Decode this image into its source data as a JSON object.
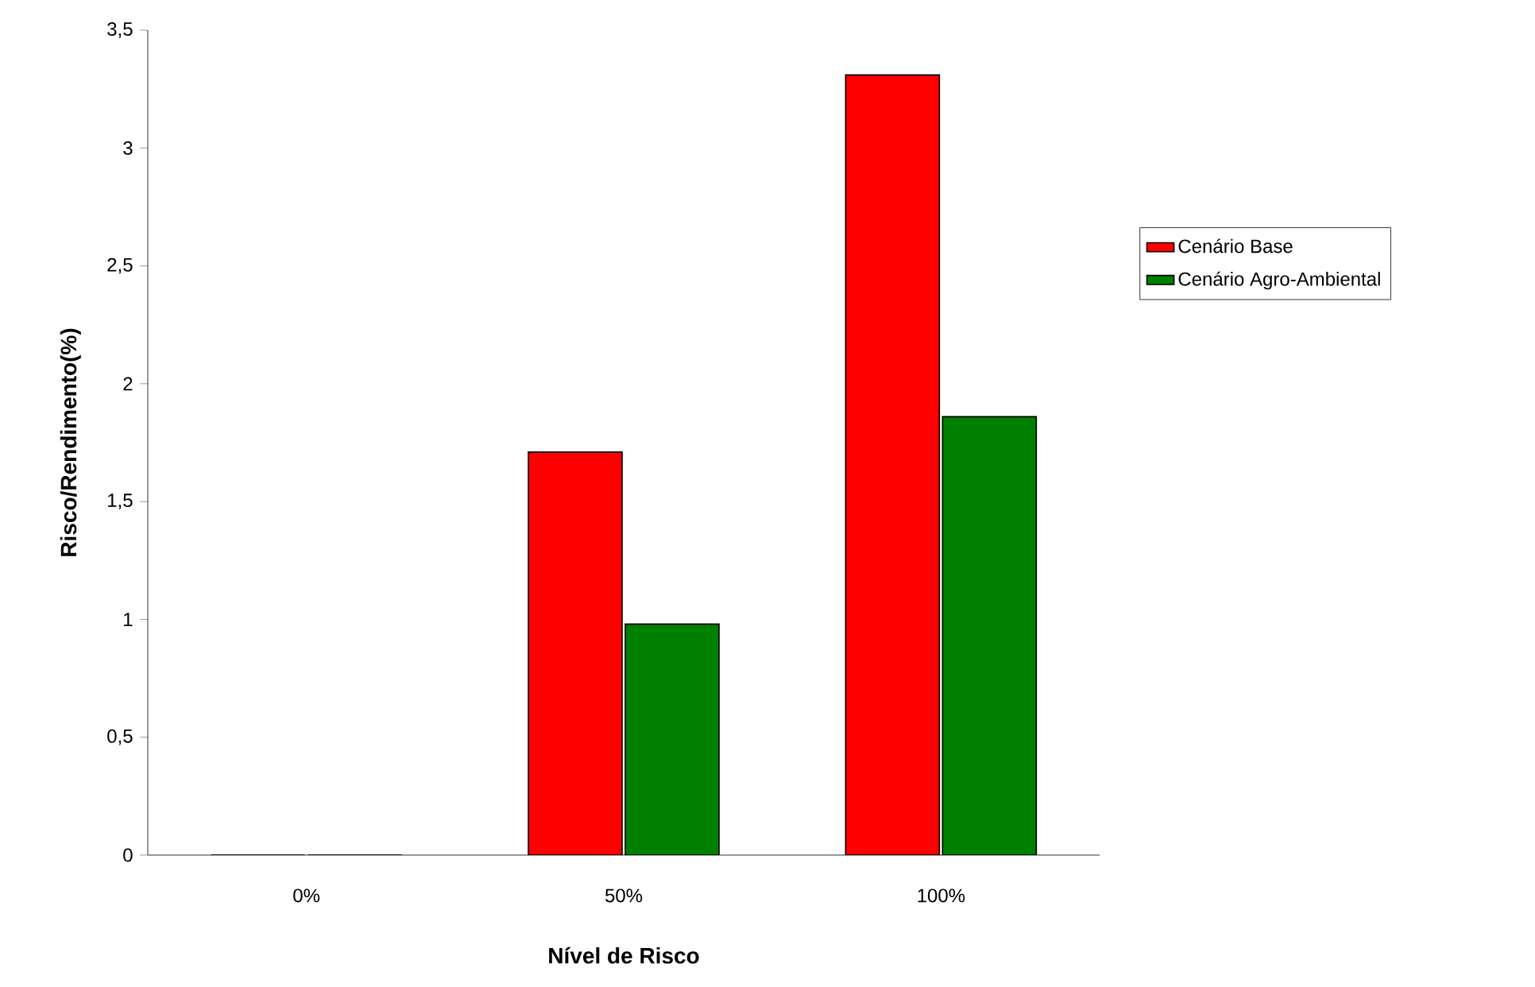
{
  "chart_data": {
    "type": "bar",
    "xlabel": "Nível de Risco",
    "ylabel": "Risco/Rendimento(%)",
    "categories": [
      "0%",
      "50%",
      "100%"
    ],
    "series": [
      {
        "name": "Cenário Base",
        "color": "#ff0000",
        "values": [
          0,
          1.71,
          3.31
        ]
      },
      {
        "name": "Cenário Agro-Ambiental",
        "color": "#008000",
        "values": [
          0,
          0.98,
          1.86
        ]
      }
    ],
    "ylim": [
      0,
      3.5
    ],
    "yticks": [
      0,
      {
        "value": 0.5,
        "label": "0,5"
      },
      1,
      {
        "value": 1.5,
        "label": "1,5"
      },
      2,
      {
        "value": 2.5,
        "label": "2,5"
      },
      3,
      {
        "value": 3.5,
        "label": "3,5"
      }
    ],
    "legend": "right"
  }
}
